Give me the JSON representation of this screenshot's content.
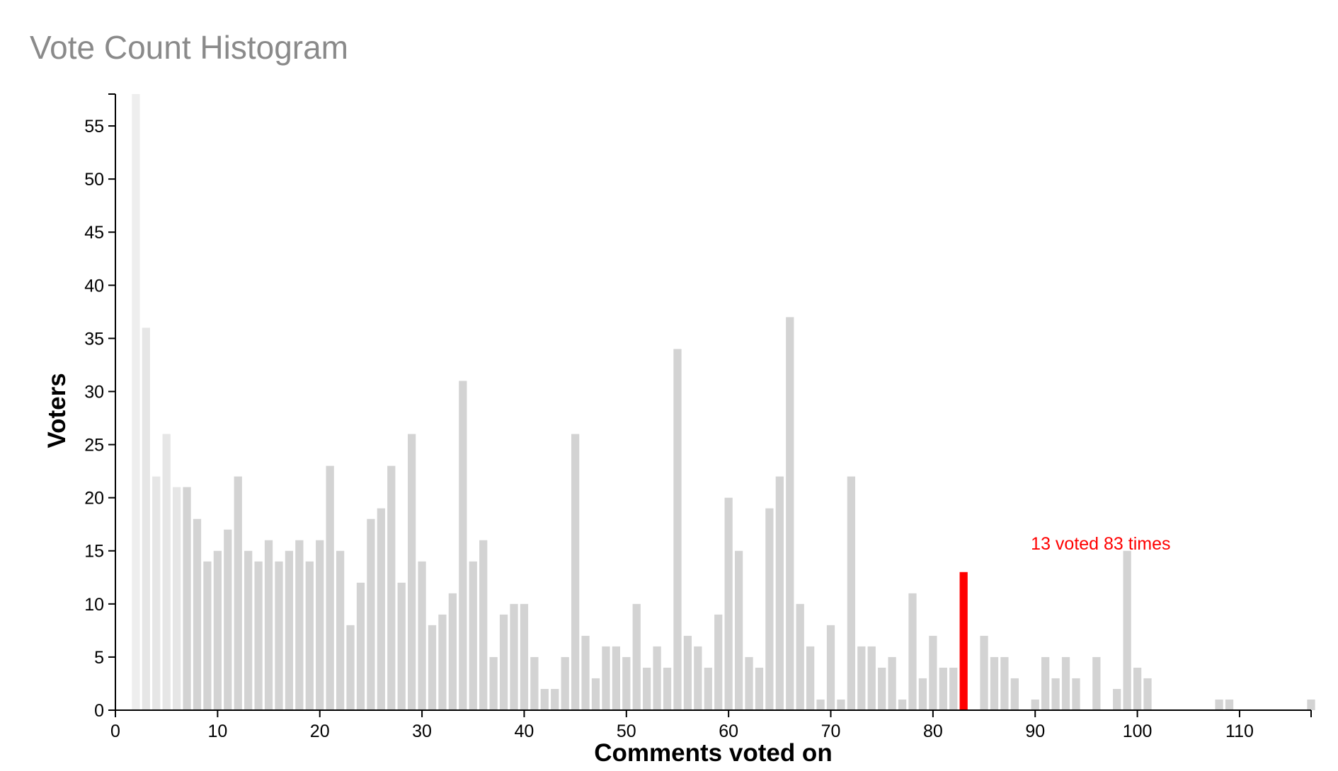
{
  "chart_title": "Vote Count Histogram",
  "chart_data": {
    "type": "bar",
    "title": "Vote Count Histogram",
    "xlabel": "Comments voted on",
    "ylabel": "Voters",
    "xlim": [
      0,
      117
    ],
    "ylim": [
      0,
      58
    ],
    "x_ticks": [
      0,
      10,
      20,
      30,
      40,
      50,
      60,
      70,
      80,
      90,
      100,
      110
    ],
    "y_ticks": [
      0,
      5,
      10,
      15,
      20,
      25,
      30,
      35,
      40,
      45,
      50,
      55
    ],
    "grid": false,
    "bars": [
      {
        "x": 2,
        "y": 58
      },
      {
        "x": 3,
        "y": 36
      },
      {
        "x": 4,
        "y": 22
      },
      {
        "x": 5,
        "y": 26
      },
      {
        "x": 6,
        "y": 21
      },
      {
        "x": 7,
        "y": 21
      },
      {
        "x": 8,
        "y": 18
      },
      {
        "x": 9,
        "y": 14
      },
      {
        "x": 10,
        "y": 15
      },
      {
        "x": 11,
        "y": 17
      },
      {
        "x": 12,
        "y": 22
      },
      {
        "x": 13,
        "y": 15
      },
      {
        "x": 14,
        "y": 14
      },
      {
        "x": 15,
        "y": 16
      },
      {
        "x": 16,
        "y": 14
      },
      {
        "x": 17,
        "y": 15
      },
      {
        "x": 18,
        "y": 16
      },
      {
        "x": 19,
        "y": 14
      },
      {
        "x": 20,
        "y": 16
      },
      {
        "x": 21,
        "y": 23
      },
      {
        "x": 22,
        "y": 15
      },
      {
        "x": 23,
        "y": 8
      },
      {
        "x": 24,
        "y": 12
      },
      {
        "x": 25,
        "y": 18
      },
      {
        "x": 26,
        "y": 19
      },
      {
        "x": 27,
        "y": 23
      },
      {
        "x": 28,
        "y": 12
      },
      {
        "x": 29,
        "y": 26
      },
      {
        "x": 30,
        "y": 14
      },
      {
        "x": 31,
        "y": 8
      },
      {
        "x": 32,
        "y": 9
      },
      {
        "x": 33,
        "y": 11
      },
      {
        "x": 34,
        "y": 31
      },
      {
        "x": 35,
        "y": 14
      },
      {
        "x": 36,
        "y": 16
      },
      {
        "x": 37,
        "y": 5
      },
      {
        "x": 38,
        "y": 9
      },
      {
        "x": 39,
        "y": 10
      },
      {
        "x": 40,
        "y": 10
      },
      {
        "x": 41,
        "y": 5
      },
      {
        "x": 42,
        "y": 2
      },
      {
        "x": 43,
        "y": 2
      },
      {
        "x": 44,
        "y": 5
      },
      {
        "x": 45,
        "y": 26
      },
      {
        "x": 46,
        "y": 7
      },
      {
        "x": 47,
        "y": 3
      },
      {
        "x": 48,
        "y": 6
      },
      {
        "x": 49,
        "y": 6
      },
      {
        "x": 50,
        "y": 5
      },
      {
        "x": 51,
        "y": 10
      },
      {
        "x": 52,
        "y": 4
      },
      {
        "x": 53,
        "y": 6
      },
      {
        "x": 54,
        "y": 4
      },
      {
        "x": 55,
        "y": 34
      },
      {
        "x": 56,
        "y": 7
      },
      {
        "x": 57,
        "y": 6
      },
      {
        "x": 58,
        "y": 4
      },
      {
        "x": 59,
        "y": 9
      },
      {
        "x": 60,
        "y": 20
      },
      {
        "x": 61,
        "y": 15
      },
      {
        "x": 62,
        "y": 5
      },
      {
        "x": 63,
        "y": 4
      },
      {
        "x": 64,
        "y": 19
      },
      {
        "x": 65,
        "y": 22
      },
      {
        "x": 66,
        "y": 37
      },
      {
        "x": 67,
        "y": 10
      },
      {
        "x": 68,
        "y": 6
      },
      {
        "x": 69,
        "y": 1
      },
      {
        "x": 70,
        "y": 8
      },
      {
        "x": 71,
        "y": 1
      },
      {
        "x": 72,
        "y": 22
      },
      {
        "x": 73,
        "y": 6
      },
      {
        "x": 74,
        "y": 6
      },
      {
        "x": 75,
        "y": 4
      },
      {
        "x": 76,
        "y": 5
      },
      {
        "x": 77,
        "y": 1
      },
      {
        "x": 78,
        "y": 11
      },
      {
        "x": 79,
        "y": 3
      },
      {
        "x": 80,
        "y": 7
      },
      {
        "x": 81,
        "y": 4
      },
      {
        "x": 82,
        "y": 4
      },
      {
        "x": 83,
        "y": 13
      },
      {
        "x": 85,
        "y": 7
      },
      {
        "x": 86,
        "y": 5
      },
      {
        "x": 87,
        "y": 5
      },
      {
        "x": 88,
        "y": 3
      },
      {
        "x": 90,
        "y": 1
      },
      {
        "x": 91,
        "y": 5
      },
      {
        "x": 92,
        "y": 3
      },
      {
        "x": 93,
        "y": 5
      },
      {
        "x": 94,
        "y": 3
      },
      {
        "x": 96,
        "y": 5
      },
      {
        "x": 98,
        "y": 2
      },
      {
        "x": 99,
        "y": 15
      },
      {
        "x": 100,
        "y": 4
      },
      {
        "x": 101,
        "y": 3
      },
      {
        "x": 108,
        "y": 1
      },
      {
        "x": 109,
        "y": 1
      },
      {
        "x": 117,
        "y": 1
      }
    ],
    "highlight": {
      "x": 83,
      "y": 13,
      "label": "13 voted 83 times"
    },
    "colors": {
      "bar": "#d3d3d3",
      "bar_faded": "#eeeeee",
      "bar_faded_mid": "#e6e6e6",
      "highlight": "#ff0000",
      "title": "#8a8a8a",
      "axis": "#000000"
    }
  }
}
